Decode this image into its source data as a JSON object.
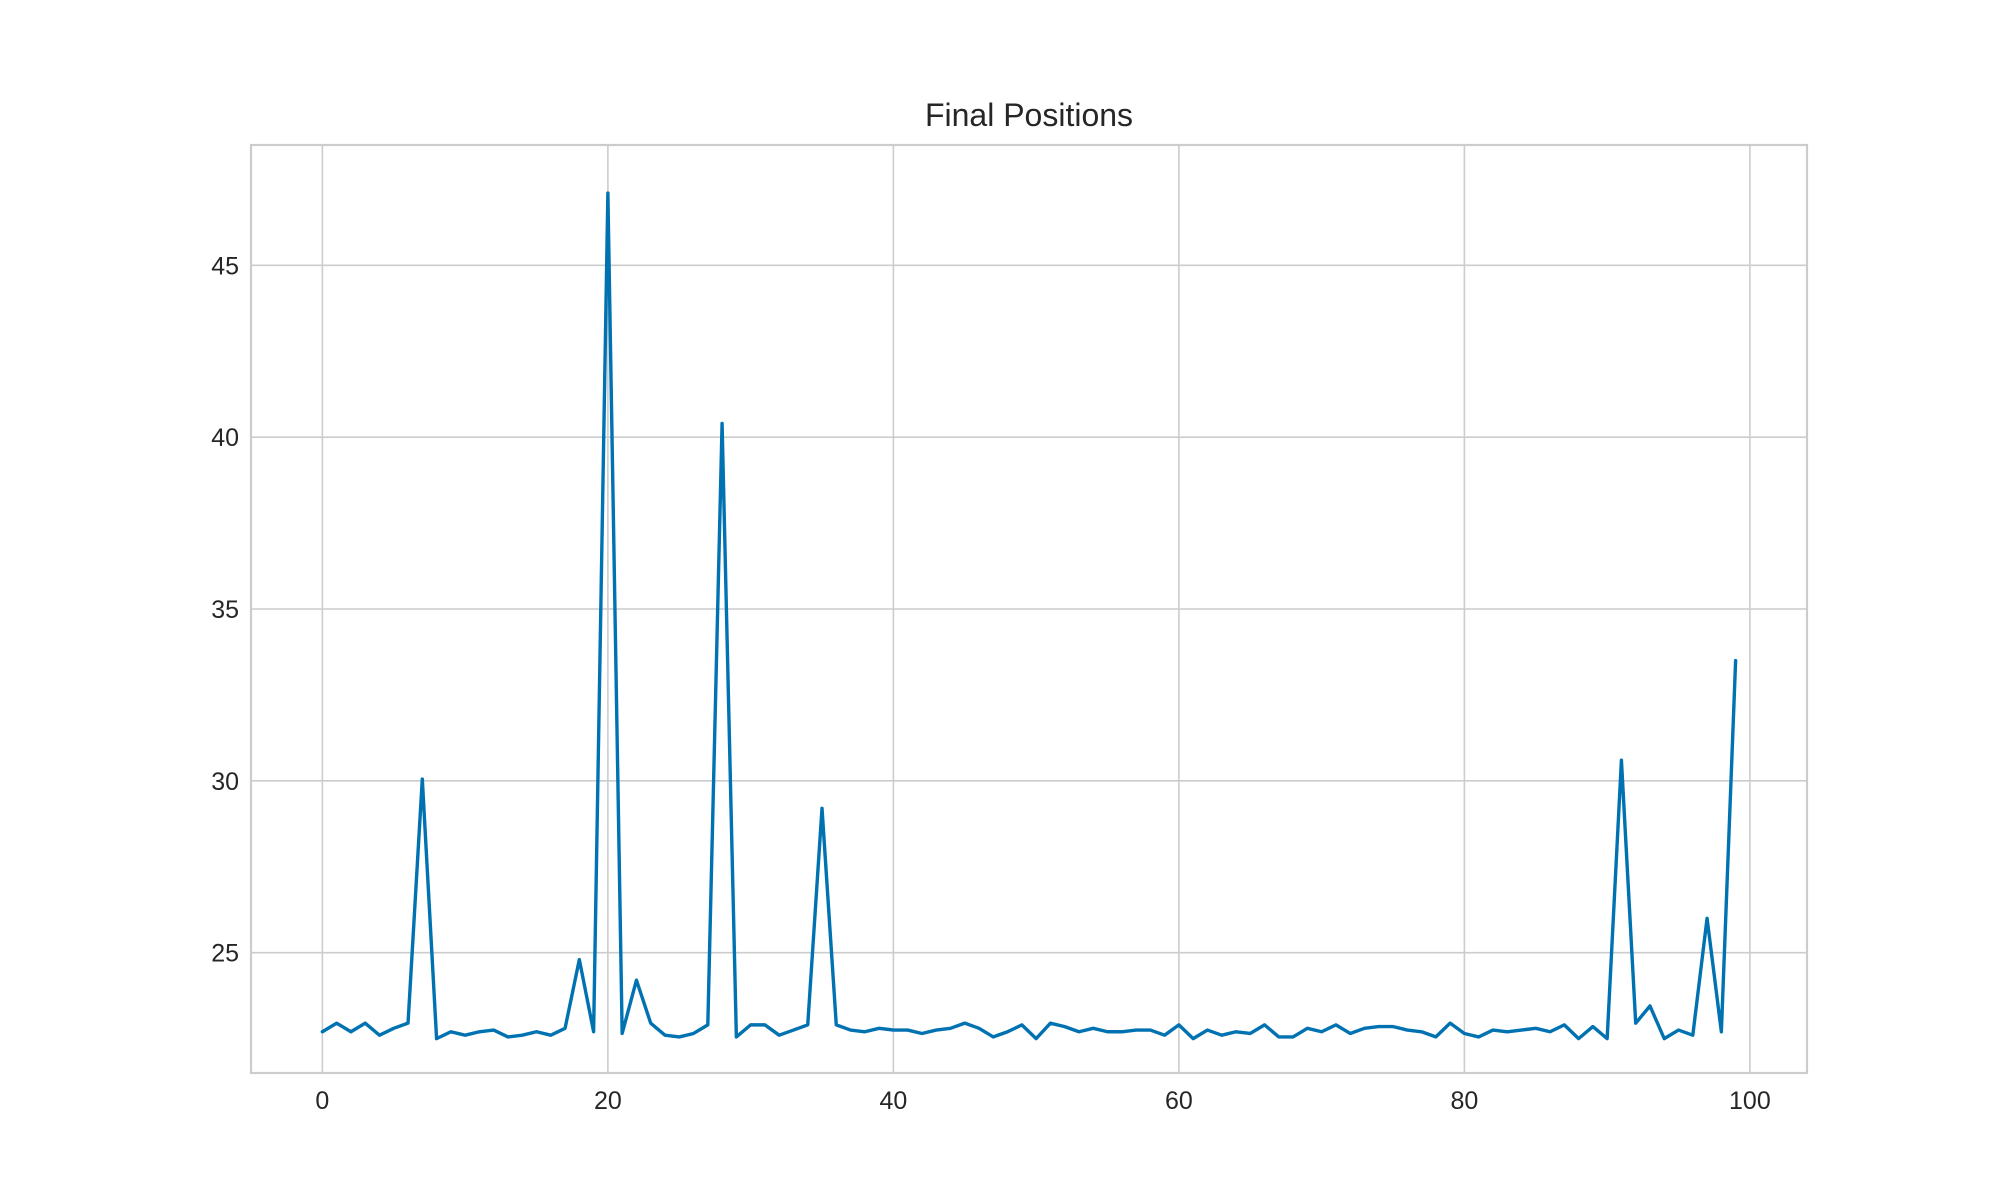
{
  "chart_data": {
    "type": "line",
    "title": "Final Positions",
    "xlabel": "",
    "ylabel": "",
    "xlim": [
      -5,
      104
    ],
    "ylim": [
      21.5,
      48.5
    ],
    "xticks": [
      0,
      20,
      40,
      60,
      80,
      100
    ],
    "yticks": [
      25,
      30,
      35,
      40,
      45
    ],
    "grid": true,
    "legend": "none",
    "series": [
      {
        "color": "#0072b2",
        "x": [
          0,
          1,
          2,
          3,
          4,
          5,
          6,
          7,
          8,
          9,
          10,
          11,
          12,
          13,
          14,
          15,
          16,
          17,
          18,
          19,
          20,
          21,
          22,
          23,
          24,
          25,
          26,
          27,
          28,
          29,
          30,
          31,
          32,
          33,
          34,
          35,
          36,
          37,
          38,
          39,
          40,
          41,
          42,
          43,
          44,
          45,
          46,
          47,
          48,
          49,
          50,
          51,
          52,
          53,
          54,
          55,
          56,
          57,
          58,
          59,
          60,
          61,
          62,
          63,
          64,
          65,
          66,
          67,
          68,
          69,
          70,
          71,
          72,
          73,
          74,
          75,
          76,
          77,
          78,
          79,
          80,
          81,
          82,
          83,
          84,
          85,
          86,
          87,
          88,
          89,
          90,
          91,
          92,
          93,
          94,
          95,
          96,
          97,
          98,
          99
        ],
        "values": [
          22.7,
          22.95,
          22.7,
          22.95,
          22.6,
          22.8,
          22.95,
          30.05,
          22.5,
          22.7,
          22.6,
          22.7,
          22.75,
          22.55,
          22.6,
          22.7,
          22.6,
          22.8,
          24.8,
          22.7,
          47.1,
          22.65,
          24.2,
          22.95,
          22.6,
          22.55,
          22.65,
          22.9,
          40.4,
          22.55,
          22.9,
          22.9,
          22.6,
          22.75,
          22.9,
          29.2,
          22.9,
          22.75,
          22.7,
          22.8,
          22.75,
          22.75,
          22.65,
          22.75,
          22.8,
          22.95,
          22.8,
          22.55,
          22.7,
          22.9,
          22.5,
          22.95,
          22.85,
          22.7,
          22.8,
          22.7,
          22.7,
          22.75,
          22.75,
          22.6,
          22.9,
          22.5,
          22.75,
          22.6,
          22.7,
          22.65,
          22.9,
          22.55,
          22.55,
          22.8,
          22.7,
          22.9,
          22.65,
          22.8,
          22.85,
          22.85,
          22.75,
          22.7,
          22.55,
          22.95,
          22.65,
          22.55,
          22.75,
          22.7,
          22.75,
          22.8,
          22.7,
          22.9,
          22.5,
          22.85,
          22.5,
          30.6,
          22.95,
          23.45,
          22.5,
          22.75,
          22.6,
          26.0,
          22.7,
          33.5
        ]
      }
    ]
  }
}
